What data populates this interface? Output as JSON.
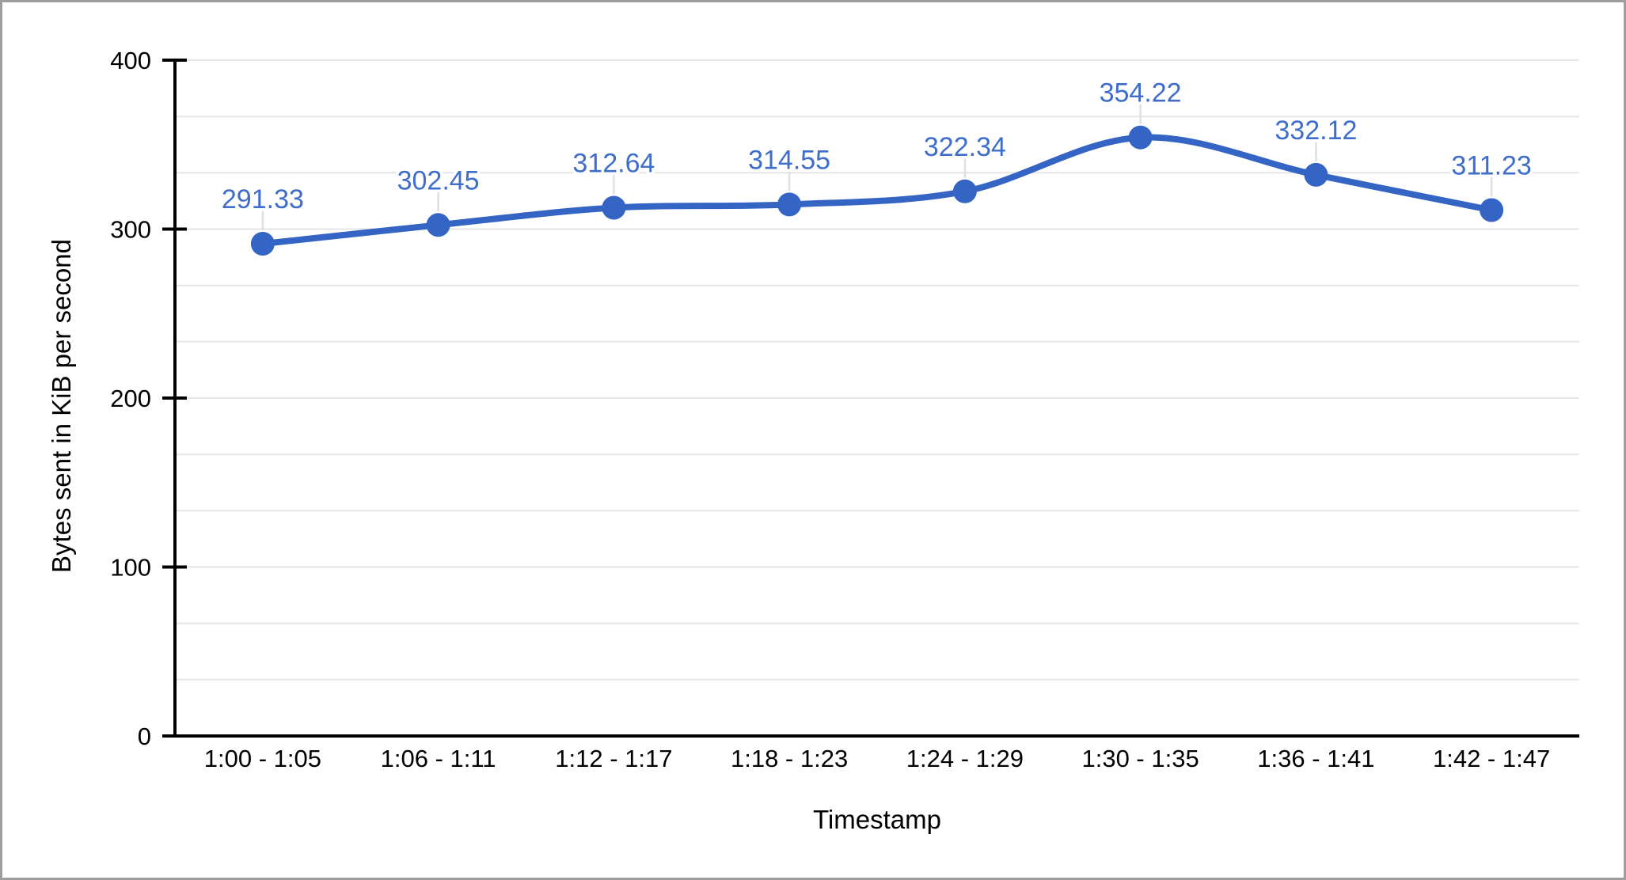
{
  "page": {
    "background": "#ffffff",
    "border_color": "#9e9e9e"
  },
  "chart_data": {
    "type": "line",
    "smooth": true,
    "title": "",
    "xlabel": "Timestamp",
    "ylabel": "Bytes sent in KiB per second",
    "categories": [
      "1:00 - 1:05",
      "1:06 - 1:11",
      "1:12 - 1:17",
      "1:18 - 1:23",
      "1:24 - 1:29",
      "1:30 - 1:35",
      "1:36 - 1:41",
      "1:42 - 1:47"
    ],
    "values": [
      291.33,
      302.45,
      312.64,
      314.55,
      322.34,
      354.22,
      332.12,
      311.23
    ],
    "data_labels": [
      "291.33",
      "302.45",
      "312.64",
      "314.55",
      "322.34",
      "354.22",
      "332.12",
      "311.23"
    ],
    "y_ticks": [
      "0",
      "100",
      "200",
      "300",
      "400"
    ],
    "y_tick_values": [
      0,
      100,
      200,
      300,
      400
    ],
    "ylim": [
      0,
      400
    ],
    "y_minor_divisions_per_major": 3,
    "grid": "on",
    "legend_position": "none",
    "colors": {
      "series": "#3565c4",
      "data_label": "#3e6dcb",
      "axis": "#000000",
      "tick_label": "#000000",
      "gridline": "#e6e6e6",
      "leader_line": "#e0e0e0"
    }
  }
}
